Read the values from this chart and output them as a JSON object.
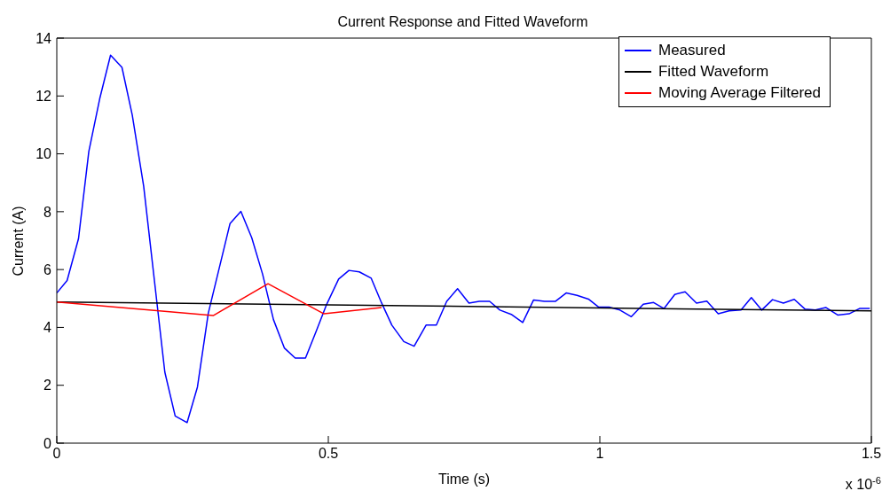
{
  "chart_data": {
    "type": "line",
    "title": "Current Response and Fitted Waveform",
    "xlabel": "Time (s)",
    "ylabel": "Current (A)",
    "annotations": [
      "x 10$^{-6}$"
    ],
    "xlim": [
      0,
      1.5
    ],
    "xticks": [
      0,
      0.5,
      1,
      1.5
    ],
    "ylim": [
      0,
      14
    ],
    "yticks": [
      0,
      2,
      4,
      6,
      8,
      10,
      12,
      14
    ],
    "legend": "top right",
    "marker": "none",
    "line_style": "solid",
    "series": [
      {
        "name": "Measured",
        "color": "#0000ff",
        "x": [
          0,
          0.019,
          0.04,
          0.059,
          0.079,
          0.099,
          0.12,
          0.139,
          0.16,
          0.199,
          0.218,
          0.24,
          0.259,
          0.279,
          0.319,
          0.339,
          0.359,
          0.379,
          0.399,
          0.419,
          0.439,
          0.458,
          0.478,
          0.497,
          0.519,
          0.538,
          0.557,
          0.579,
          0.598,
          0.617,
          0.639,
          0.658,
          0.68,
          0.699,
          0.718,
          0.738,
          0.759,
          0.778,
          0.797,
          0.816,
          0.838,
          0.858,
          0.878,
          0.898,
          0.918,
          0.938,
          0.958,
          0.979,
          0.998,
          1.017,
          1.037,
          1.058,
          1.08,
          1.099,
          1.118,
          1.138,
          1.157,
          1.178,
          1.197,
          1.218,
          1.238,
          1.26,
          1.279,
          1.298,
          1.318,
          1.338,
          1.358,
          1.378,
          1.397,
          1.416,
          1.438,
          1.459,
          1.479,
          1.497
        ],
        "values": [
          5.19,
          5.62,
          7.07,
          10.08,
          11.9,
          13.41,
          12.99,
          11.34,
          8.88,
          2.45,
          0.94,
          0.71,
          1.94,
          4.49,
          7.59,
          8.01,
          7.1,
          5.84,
          4.27,
          3.29,
          2.94,
          2.94,
          3.88,
          4.8,
          5.67,
          5.97,
          5.92,
          5.7,
          4.85,
          4.08,
          3.51,
          3.35,
          4.08,
          4.08,
          4.9,
          5.34,
          4.84,
          4.9,
          4.9,
          4.6,
          4.44,
          4.17,
          4.95,
          4.9,
          4.9,
          5.19,
          5.11,
          4.98,
          4.7,
          4.7,
          4.6,
          4.37,
          4.8,
          4.86,
          4.65,
          5.14,
          5.23,
          4.84,
          4.91,
          4.47,
          4.57,
          4.6,
          5.03,
          4.6,
          4.96,
          4.84,
          4.97,
          4.63,
          4.6,
          4.69,
          4.43,
          4.47,
          4.66,
          4.66
        ]
      },
      {
        "name": "Fitted Waveform",
        "color": "#000000",
        "x": [
          0,
          1.5
        ],
        "values": [
          4.88,
          4.57
        ]
      },
      {
        "name": "Moving Average Filtered",
        "color": "#ff0000",
        "x": [
          0,
          0.288,
          0.389,
          0.492,
          0.598
        ],
        "values": [
          4.88,
          4.41,
          5.51,
          4.47,
          4.69
        ]
      }
    ]
  }
}
